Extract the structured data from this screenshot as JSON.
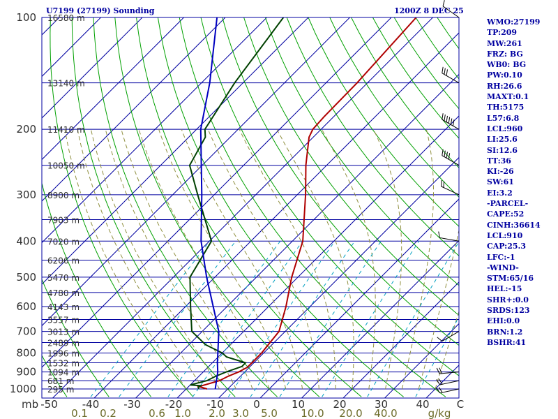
{
  "header": {
    "station": "U7199 (27199) Sounding",
    "time": "1200Z  8 DEC 25"
  },
  "stats": [
    "WMO:27199",
    "TP:209",
    "MW:261",
    "FRZ: BG",
    "WB0: BG",
    "PW:0.10",
    "RH:26.6",
    "MAXT:0.1",
    "TH:5175",
    "L57:6.8",
    "LCL:960",
    "LI:25.6",
    "SI:12.6",
    "TT:36",
    "KI:-26",
    "SW:61",
    "EI:3.2",
    "-PARCEL-",
    "CAPE:52",
    "CINH:36614",
    "LCL:910",
    "CAP:25.3",
    "LFC:-1",
    "-WIND-",
    "STM:65/16",
    "HEL:-15",
    "SHR+:0.0",
    "SRDS:123",
    "EHI:0.0",
    "BRN:1.2",
    "BSHR:41"
  ],
  "colors": {
    "isobar": "#0000a0",
    "isotherm": "#0000a0",
    "dry_adiabat": "#00a000",
    "moist_adiabat": "#909040",
    "mixing_ratio": "#00a0c0",
    "temperature": "#b00000",
    "dewpoint": "#004000",
    "parcel": "#0000c0"
  },
  "chart_data": {
    "type": "line",
    "title": "",
    "xlabel": "",
    "ylabel": "",
    "units_label": "mb",
    "pressure_levels": [
      100,
      200,
      300,
      400,
      500,
      600,
      700,
      800,
      900,
      1000
    ],
    "pressure_ticks": [
      "100",
      "200",
      "300",
      "400",
      "500",
      "600",
      "700",
      "800",
      "900",
      "1000"
    ],
    "ylim": [
      1050,
      100
    ],
    "temperature_ticks": [
      -50,
      -40,
      -30,
      -20,
      -10,
      0,
      10,
      20,
      30,
      40
    ],
    "temperature_tick_labels": [
      "-50",
      "-40",
      "-30",
      "-20",
      "-10",
      "0",
      "10",
      "20",
      "30",
      "40",
      "C"
    ],
    "mixing_ratio_labels": [
      "0.1",
      "0.2",
      "0.6",
      "1.0",
      "2.0",
      "3.0",
      "5.0",
      "10.0",
      "20.0",
      "40.0",
      "g/kg"
    ],
    "height_labels": [
      {
        "p": 100,
        "text": "16580 m"
      },
      {
        "p": 150,
        "text": "13140 m"
      },
      {
        "p": 200,
        "text": "11410 m"
      },
      {
        "p": 250,
        "text": "10050 m"
      },
      {
        "p": 300,
        "text": "8900 m"
      },
      {
        "p": 350,
        "text": "7903 m"
      },
      {
        "p": 400,
        "text": "7020 m"
      },
      {
        "p": 450,
        "text": "6206 m"
      },
      {
        "p": 500,
        "text": "5470 m"
      },
      {
        "p": 550,
        "text": "4780 m"
      },
      {
        "p": 600,
        "text": "4143 m"
      },
      {
        "p": 650,
        "text": "3557 m"
      },
      {
        "p": 700,
        "text": "3013 m"
      },
      {
        "p": 750,
        "text": "2489 m"
      },
      {
        "p": 800,
        "text": "1996 m"
      },
      {
        "p": 850,
        "text": "1532 m"
      },
      {
        "p": 900,
        "text": "1094 m"
      },
      {
        "p": 950,
        "text": "681 m"
      },
      {
        "p": 1000,
        "text": "295 m"
      }
    ],
    "series": [
      {
        "role": "temperature",
        "p": [
          1000,
          985,
          950,
          925,
          900,
          875,
          850,
          800,
          700,
          600,
          500,
          400,
          300,
          250,
          210,
          200,
          185,
          150,
          100
        ],
        "t": [
          -15,
          -17.5,
          -14,
          -13,
          -11.5,
          -10.5,
          -10.5,
          -10.5,
          -11.5,
          -15.8,
          -21.5,
          -27.5,
          -38,
          -45,
          -51,
          -52,
          -52.3,
          -52.5,
          -54
        ]
      },
      {
        "role": "dewpoint",
        "p": [
          1000,
          990,
          980,
          975,
          950,
          925,
          900,
          870,
          850,
          820,
          800,
          760,
          700,
          600,
          500,
          400,
          300,
          250,
          210,
          200,
          150,
          100
        ],
        "t": [
          -17,
          -17.5,
          -17.3,
          -20,
          -17,
          -16,
          -14.5,
          -12,
          -12,
          -18,
          -20,
          -26,
          -32.5,
          -38.8,
          -46,
          -49.5,
          -64,
          -73,
          -76,
          -78,
          -82,
          -86
        ]
      },
      {
        "role": "parcel",
        "p": [
          1000,
          900,
          850,
          700,
          500,
          400,
          300,
          200,
          150,
          100
        ],
        "t": [
          -13,
          -16.5,
          -18.8,
          -26,
          -42,
          -52,
          -63,
          -79,
          -88,
          -102
        ]
      }
    ],
    "winds": [
      {
        "p": 1000,
        "dir": 258,
        "spd": 20
      },
      {
        "p": 950,
        "dir": 258,
        "spd": 20
      },
      {
        "p": 900,
        "dir": 265,
        "spd": 20
      },
      {
        "p": 700,
        "dir": 240,
        "spd": 12
      },
      {
        "p": 400,
        "dir": 280,
        "spd": 8
      },
      {
        "p": 300,
        "dir": 295,
        "spd": 22
      },
      {
        "p": 250,
        "dir": 300,
        "spd": 40
      },
      {
        "p": 200,
        "dir": 300,
        "spd": 55
      },
      {
        "p": 150,
        "dir": 300,
        "spd": 30
      },
      {
        "p": 100,
        "dir": 305,
        "spd": 10
      }
    ]
  }
}
